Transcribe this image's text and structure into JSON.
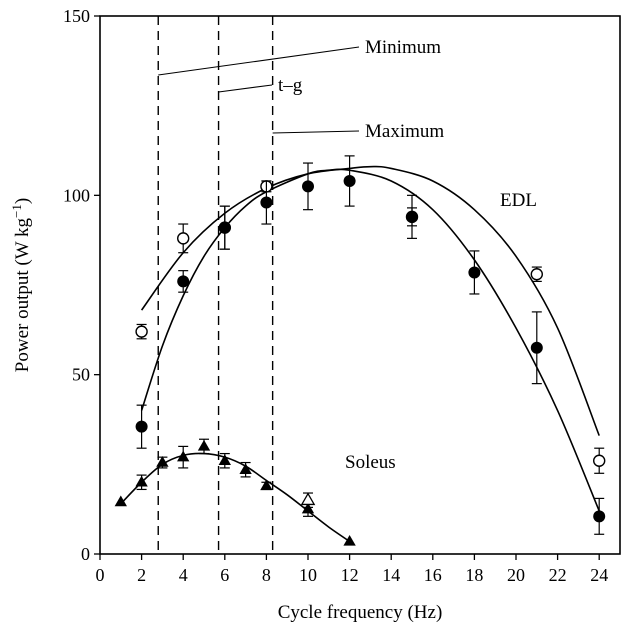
{
  "chart_data": {
    "type": "scatter",
    "xlabel": "Cycle frequency (Hz)",
    "ylabel_base": "Power output (W kg",
    "ylabel_sup": "−1",
    "ylabel_close": ")",
    "xlim": [
      0,
      25
    ],
    "ylim": [
      0,
      150
    ],
    "xticks": [
      0,
      2,
      4,
      6,
      8,
      10,
      12,
      14,
      16,
      18,
      20,
      22,
      24
    ],
    "yticks": [
      0,
      50,
      100,
      150
    ],
    "grid": false,
    "series": [
      {
        "marker": "open-circle",
        "points": [
          {
            "x": 2,
            "y": 62,
            "err": 2
          },
          {
            "x": 4,
            "y": 88,
            "err": 4
          },
          {
            "x": 6,
            "y": 91,
            "err": 6
          },
          {
            "x": 8,
            "y": 102.5,
            "err": 1.5
          },
          {
            "x": 15,
            "y": 94,
            "err": 2.5
          },
          {
            "x": 21,
            "y": 78,
            "err": 2
          },
          {
            "x": 24,
            "y": 26,
            "err": 3.5
          }
        ],
        "fit": [
          [
            2,
            68
          ],
          [
            4,
            84
          ],
          [
            6,
            95
          ],
          [
            8,
            102
          ],
          [
            10,
            106
          ],
          [
            12,
            107.5
          ],
          [
            13,
            108
          ],
          [
            14,
            107.5
          ],
          [
            16,
            104
          ],
          [
            18,
            96
          ],
          [
            20,
            83
          ],
          [
            22,
            63
          ],
          [
            24,
            33
          ]
        ]
      },
      {
        "marker": "filled-circle",
        "points": [
          {
            "x": 2,
            "y": 35.5,
            "err": 6
          },
          {
            "x": 4,
            "y": 76,
            "err": 3
          },
          {
            "x": 6,
            "y": 91,
            "err": 6
          },
          {
            "x": 8,
            "y": 98,
            "err": 6
          },
          {
            "x": 10,
            "y": 102.5,
            "err": 6.5
          },
          {
            "x": 12,
            "y": 104,
            "err": 7
          },
          {
            "x": 15,
            "y": 94,
            "err": 6
          },
          {
            "x": 18,
            "y": 78.5,
            "err": 6
          },
          {
            "x": 21,
            "y": 57.5,
            "err": 10
          },
          {
            "x": 24,
            "y": 10.5,
            "err": 5
          }
        ],
        "fit": [
          [
            2,
            40
          ],
          [
            3,
            58
          ],
          [
            4,
            72
          ],
          [
            5,
            83
          ],
          [
            6,
            91
          ],
          [
            7,
            97
          ],
          [
            8,
            101
          ],
          [
            10,
            106
          ],
          [
            11,
            107
          ],
          [
            12,
            107
          ],
          [
            14,
            104
          ],
          [
            16,
            96
          ],
          [
            18,
            82
          ],
          [
            20,
            63
          ],
          [
            22,
            40
          ],
          [
            24,
            12
          ]
        ]
      },
      {
        "marker": "filled-triangle",
        "points": [
          {
            "x": 1,
            "y": 14.5,
            "err": 0
          },
          {
            "x": 2,
            "y": 20,
            "err": 2
          },
          {
            "x": 3,
            "y": 25.5,
            "err": 1.5
          },
          {
            "x": 4,
            "y": 27,
            "err": 3
          },
          {
            "x": 5,
            "y": 30,
            "err": 2
          },
          {
            "x": 6,
            "y": 26,
            "err": 2
          },
          {
            "x": 7,
            "y": 23.5,
            "err": 2
          },
          {
            "x": 8,
            "y": 19,
            "err": 1
          },
          {
            "x": 10,
            "y": 12.5,
            "err": 2
          },
          {
            "x": 12,
            "y": 3.5,
            "err": 0
          }
        ],
        "fit": [
          [
            1,
            14
          ],
          [
            2,
            20
          ],
          [
            3,
            25
          ],
          [
            4,
            27.5
          ],
          [
            5,
            28
          ],
          [
            6,
            27
          ],
          [
            7,
            24.5
          ],
          [
            8,
            20.5
          ],
          [
            9,
            16.5
          ],
          [
            10,
            12
          ],
          [
            11,
            7.5
          ],
          [
            12,
            3.5
          ]
        ]
      },
      {
        "marker": "open-triangle",
        "points": [
          {
            "x": 10,
            "y": 15,
            "err": 2
          }
        ],
        "fit": []
      }
    ],
    "vlines": [
      {
        "x": 2.8,
        "label": "Minimum"
      },
      {
        "x": 5.7,
        "label": "t–g"
      },
      {
        "x": 8.3,
        "label": "Maximum"
      }
    ],
    "annotations": {
      "edl": "EDL",
      "soleus": "Soleus"
    }
  }
}
